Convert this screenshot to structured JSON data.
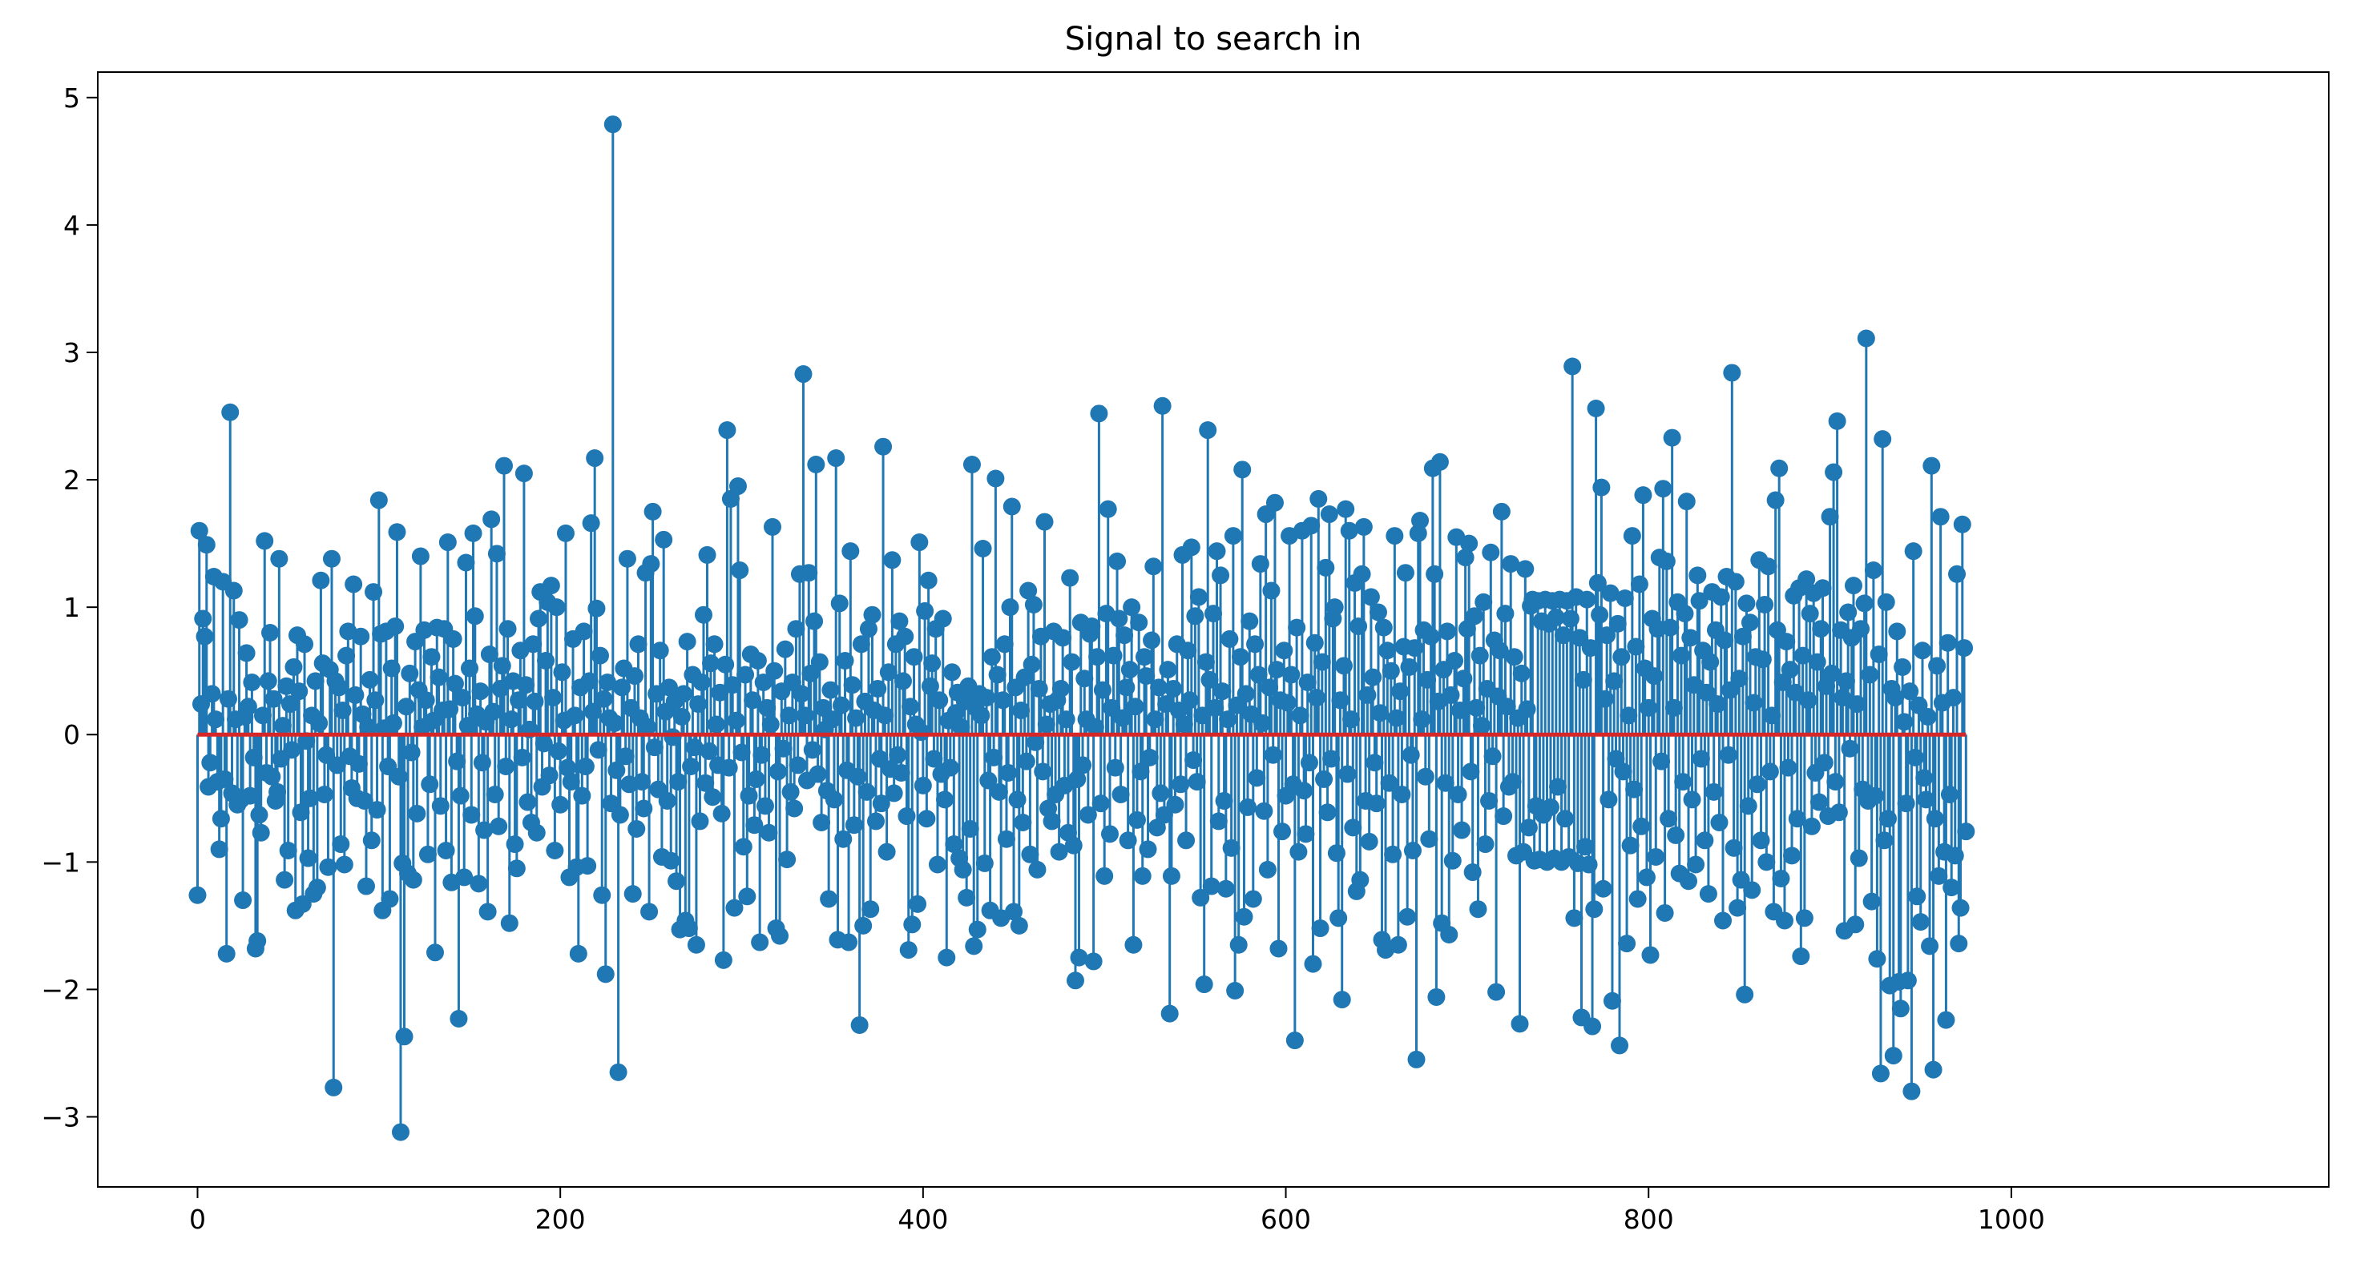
{
  "chart_data": {
    "type": "stem",
    "title": "Signal to search in",
    "xlabel": "",
    "ylabel": "",
    "xlim": [
      -55,
      1175
    ],
    "ylim": [
      -3.55,
      5.2
    ],
    "xticks": [
      0,
      200,
      400,
      600,
      800,
      1000
    ],
    "yticks": [
      -3,
      -2,
      -1,
      0,
      1,
      2,
      3,
      4,
      5
    ],
    "grid": false,
    "legend": "none",
    "baseline": 0,
    "n_points": 1120,
    "stem_color": "#1f77b4",
    "baseline_color": "#d62728",
    "x_start": 0,
    "values": [
      -1.26,
      1.6,
      0.24,
      0.91,
      0.77,
      1.49,
      -0.41,
      -0.22,
      0.32,
      1.24,
      0.12,
      -0.37,
      -0.9,
      -0.66,
      1.2,
      -0.35,
      -1.72,
      0.28,
      2.53,
      -0.46,
      1.13,
      0.12,
      -0.55,
      0.9,
      -0.51,
      -1.3,
      0.14,
      0.64,
      0.22,
      -0.48,
      0.41,
      -0.18,
      -1.68,
      -1.62,
      -0.63,
      -0.77,
      0.15,
      1.52,
      -0.3,
      0.42,
      0.8,
      -0.33,
      0.28,
      -0.52,
      -0.45,
      1.38,
      -0.19,
      0.07,
      -1.14,
      0.38,
      -0.91,
      0.24,
      -0.12,
      0.53,
      -1.38,
      0.78,
      0.34,
      -0.61,
      -1.33,
      0.71,
      -0.05,
      -0.97,
      -0.5,
      0.15,
      -1.25,
      0.42,
      -1.2,
      0.09,
      1.21,
      0.56,
      -0.47,
      -0.16,
      -1.04,
      0.51,
      1.38,
      -2.77,
      0.42,
      -0.24,
      0.37,
      -0.86,
      0.19,
      -1.02,
      0.62,
      0.81,
      -0.17,
      -0.42,
      1.18,
      0.31,
      -0.5,
      -0.23,
      0.77,
      0.16,
      -0.52,
      -1.19,
      0.06,
      0.43,
      -0.83,
      1.12,
      0.27,
      -0.59,
      1.84,
      0.79,
      -1.38,
      0.05,
      0.81,
      -0.25,
      -1.29,
      0.52,
      0.09,
      0.85,
      1.59,
      -0.33,
      -3.12,
      -1.01,
      -2.37,
      0.22,
      -1.09,
      0.48,
      -0.14,
      -1.14,
      0.73,
      -0.62,
      0.35,
      1.4,
      0.06,
      0.82,
      0.27,
      -0.94,
      -0.39,
      0.61,
      0.11,
      -1.71,
      0.84,
      0.45,
      -0.56,
      0.19,
      0.83,
      -0.91,
      1.51,
      0.2,
      -1.16,
      0.75,
      0.4,
      -0.21,
      -2.23,
      -0.48,
      0.29,
      -1.12,
      1.35,
      0.07,
      0.52,
      -0.63,
      1.58,
      0.93,
      0.16,
      -1.17,
      0.34,
      -0.22,
      -0.75,
      0.1,
      -1.39,
      0.63,
      1.69,
      0.18,
      -0.47,
      1.42,
      -0.72,
      0.36,
      0.54,
      2.11,
      -0.25,
      0.83,
      -1.48,
      0.12,
      0.42,
      -0.86,
      -1.05,
      0.27,
      0.66,
      -0.18,
      2.05,
      0.39,
      -0.53,
      0.04,
      -0.69,
      0.71,
      0.26,
      -0.77,
      0.91,
      1.12,
      -0.41,
      -0.07,
      0.58,
      1.04,
      -0.32,
      1.17,
      0.29,
      -0.91,
      1.0,
      -0.13,
      -0.55,
      0.49,
      0.11,
      1.58,
      -0.26,
      -1.12,
      -0.37,
      0.75,
      0.15,
      -1.04,
      -1.72,
      0.37,
      -0.48,
      0.81,
      -0.25,
      -1.03,
      0.42,
      1.66,
      0.18,
      2.17,
      0.99,
      -0.12,
      0.62,
      -1.26,
      0.28,
      -1.88,
      0.41,
      0.13,
      -0.54,
      4.79,
      0.09,
      -0.28,
      -2.65,
      -0.63,
      0.37,
      0.52,
      -0.17,
      1.38,
      -0.39,
      0.21,
      -1.25,
      0.46,
      -0.74,
      0.71,
      0.13,
      -0.37,
      -0.58,
      1.27,
      0.06,
      -1.39,
      1.34,
      1.75,
      -0.1,
      0.32,
      -0.43,
      0.66,
      -0.96,
      1.53,
      0.18,
      -0.52,
      0.37,
      -0.99,
      -0.02,
      0.26,
      -1.15,
      -0.37,
      -1.53,
      0.14,
      0.32,
      -1.46,
      0.73,
      -1.52,
      -0.25,
      0.47,
      -0.1,
      -1.65,
      0.24,
      -0.68,
      0.41,
      0.94,
      -0.38,
      1.41,
      -0.13,
      0.56,
      -0.49,
      0.71,
      0.08,
      -0.24,
      0.33,
      -0.62,
      -1.77,
      0.55,
      2.39,
      -0.26,
      1.85,
      0.39,
      -1.36,
      0.11,
      1.95,
      1.29,
      -0.14,
      -0.88,
      0.47,
      -1.27,
      -0.48,
      0.63,
      0.27,
      -0.71,
      -0.35,
      0.58,
      -1.63,
      -0.16,
      0.41,
      -0.56,
      0.21,
      -0.77,
      0.08,
      1.63,
      0.5,
      -1.52,
      -0.29,
      -1.58,
      0.34,
      -0.11,
      0.67,
      -0.98,
      0.15,
      -0.45,
      0.41,
      -0.58,
      0.83,
      -0.24,
      1.26,
      0.32,
      2.83,
      0.15,
      -0.36,
      1.27,
      0.48,
      -0.12,
      0.89,
      2.12,
      -0.31,
      0.57,
      -0.69,
      0.21,
      0.04,
      -0.44,
      -1.29,
      0.35,
      0.12,
      -0.51,
      2.17,
      -1.61,
      1.03,
      0.23,
      -0.82,
      0.58,
      -0.28,
      -1.63,
      1.44,
      0.39,
      -0.71,
      0.13,
      -0.33,
      -2.28,
      0.71,
      -1.5,
      0.26,
      -0.45,
      0.83,
      -1.37,
      0.94,
      0.19,
      -0.68,
      0.36,
      -0.19,
      -0.54,
      2.26,
      0.15,
      -0.92,
      0.49,
      -0.27,
      1.37,
      -0.46,
      0.71,
      -0.16,
      0.89,
      -0.3,
      0.42,
      0.77,
      -0.64,
      -1.69,
      0.22,
      -1.49,
      0.61,
      0.08,
      -1.33,
      1.51,
      0.02,
      -0.4,
      0.97,
      -0.66,
      1.21,
      0.38,
      0.56,
      -0.19,
      0.83,
      -1.02,
      0.27,
      -0.31,
      0.91,
      -0.51,
      -1.75,
      0.11,
      -0.26,
      0.49,
      -0.86,
      0.17,
      0.33,
      -0.97,
      0.06,
      -1.06,
      0.26,
      -1.28,
      0.38,
      -0.74,
      2.12,
      -1.66,
      0.21,
      -1.53,
      0.32,
      0.15,
      1.46,
      -1.01,
      0.29,
      -0.36,
      -1.38,
      0.61,
      -0.18,
      2.01,
      0.47,
      -0.45,
      -1.44,
      0.27,
      0.71,
      -0.82,
      -0.3,
      1.0,
      1.79,
      -1.39,
      0.37,
      -0.51,
      -1.5,
      0.19,
      -0.69,
      0.45,
      -0.21,
      1.13,
      -0.94,
      0.55,
      1.02,
      -0.06,
      -1.06,
      0.36,
      0.77,
      -0.29,
      1.67,
      0.08,
      -0.58,
      0.24,
      -0.68,
      0.81,
      -0.47,
      0.27,
      -0.92,
      0.36,
      0.76,
      -0.4,
      0.12,
      -0.77,
      1.23,
      0.57,
      -0.87,
      -1.93,
      -0.35,
      -1.75,
      0.88,
      -0.24,
      0.44,
      0.12,
      -0.63,
      0.79,
      0.85,
      -1.78,
      0.06,
      0.61,
      2.52,
      -0.54,
      0.35,
      -1.11,
      0.95,
      1.77,
      -0.78,
      0.21,
      0.62,
      -0.26,
      1.36,
      0.91,
      -0.47,
      0.13,
      0.78,
      0.37,
      -0.83,
      0.51,
      1.0,
      -1.65,
      0.22,
      -0.67,
      0.88,
      -0.29,
      -1.11,
      0.61,
      0.46,
      -0.9,
      -0.18,
      0.74,
      1.32,
      0.12,
      -0.73,
      0.37,
      -0.46,
      2.58,
      -0.63,
      0.24,
      0.51,
      -2.19,
      -1.11,
      0.36,
      -0.55,
      0.71,
      0.19,
      -0.39,
      1.41,
      0.08,
      -0.83,
      0.66,
      0.27,
      1.47,
      -0.2,
      0.93,
      -0.37,
      1.08,
      -1.28,
      0.15,
      -1.96,
      0.57,
      2.39,
      0.43,
      -1.19,
      0.95,
      0.21,
      1.44,
      -0.68,
      1.25,
      0.34,
      -0.52,
      -1.21,
      0.12,
      0.75,
      -0.89,
      1.56,
      -2.01,
      0.23,
      -1.65,
      0.61,
      2.08,
      -1.43,
      0.32,
      -0.57,
      0.89,
      0.16,
      -1.29,
      0.71,
      -0.34,
      0.47,
      1.34,
      0.09,
      -0.6,
      1.73,
      -1.06,
      0.37,
      1.13,
      -0.16,
      1.82,
      0.51,
      -1.68,
      0.27,
      -0.76,
      0.66,
      -0.48,
      0.25,
      1.56,
      0.47,
      -0.39,
      -2.4,
      0.84,
      -0.92,
      0.15,
      1.6,
      -0.44,
      -0.78,
      0.41,
      -0.22,
      1.64,
      -1.8,
      0.72,
      0.29,
      1.85,
      -1.52,
      0.57,
      -0.35,
      1.31,
      -0.61,
      1.73,
      -0.19,
      0.91,
      1.0,
      -0.93,
      -1.44,
      0.27,
      -2.08,
      0.54,
      1.77,
      -0.31,
      1.6,
      0.12,
      -0.73,
      1.19,
      -1.23,
      0.85,
      -1.14,
      1.26,
      1.63,
      -0.52,
      0.31,
      -0.84,
      1.08,
      0.45,
      -0.22,
      -0.54,
      0.96,
      0.17,
      -1.61,
      0.84,
      -1.69,
      0.66,
      -0.38,
      0.5,
      -0.94,
      1.56,
      0.13,
      -1.65,
      0.34,
      -0.47,
      0.69,
      1.27,
      -1.43,
      0.53,
      -0.16,
      -0.91,
      0.68,
      -2.55,
      1.58,
      1.68,
      0.12,
      0.82,
      -0.33,
      0.43,
      -0.82,
      0.77,
      2.09,
      1.26,
      -2.06,
      0.26,
      2.14,
      -1.48,
      0.51,
      -0.38,
      0.81,
      -1.57,
      0.31,
      -0.99,
      0.58,
      1.55,
      -0.47,
      0.19,
      -0.75,
      0.44,
      1.39,
      0.83,
      1.5,
      -0.29,
      -1.08,
      0.93,
      0.21,
      -1.37,
      0.62,
      0.07,
      1.04,
      -0.86,
      0.36,
      -0.52,
      1.43,
      -0.17,
      0.74,
      -2.02,
      0.3,
      0.66,
      1.75,
      -0.64,
      0.95,
      0.22,
      -0.41,
      1.34,
      -0.37,
      0.61,
      -0.95,
      0.13,
      -2.27,
      0.48,
      -0.92,
      1.3,
      0.2,
      -0.73,
      1.01,
      1.06,
      -0.99,
      -0.56,
      1.05,
      -0.98,
      0.89,
      -0.63,
      1.06,
      -1.0,
      0.87,
      -0.57,
      1.05,
      -0.97,
      0.92,
      -0.41,
      1.06,
      -1.0,
      0.78,
      -0.66,
      1.05,
      -0.96,
      0.91,
      2.89,
      -1.44,
      1.08,
      -1.01,
      0.76,
      -2.22,
      0.43,
      -0.88,
      1.06,
      -1.02,
      0.68,
      -2.29,
      -1.37,
      2.56,
      1.19,
      0.94,
      1.94,
      -1.21,
      0.28,
      0.78,
      -0.51,
      1.11,
      -2.09,
      0.42,
      -0.19,
      0.87,
      -2.44,
      0.61,
      -0.29,
      1.07,
      -1.64,
      0.15,
      -0.87,
      1.56,
      -0.43,
      0.69,
      -1.29,
      1.18,
      -0.72,
      1.88,
      0.52,
      -1.12,
      0.21,
      -1.73,
      0.91,
      0.46,
      -0.96,
      0.83,
      1.39,
      -0.21,
      1.93,
      -1.4,
      1.36,
      -0.66,
      0.84,
      2.33,
      0.21,
      -0.79,
      1.04,
      -1.09,
      0.62,
      -0.37,
      0.95,
      1.83,
      -1.15,
      0.76,
      -0.51,
      0.39,
      -1.02,
      1.25,
      1.05,
      -0.19,
      0.66,
      -0.83,
      0.33,
      -1.25,
      0.57,
      1.12,
      -0.45,
      0.82,
      0.24,
      -0.69,
      1.08,
      -1.46,
      0.74,
      1.24,
      -0.16,
      0.35,
      2.84,
      -0.89,
      1.2,
      -1.36,
      0.44,
      -1.14,
      0.77,
      -2.04,
      1.03,
      -0.56,
      0.88,
      -1.22,
      0.25,
      0.61,
      -0.39,
      1.37,
      -0.83,
      0.59,
      1.02,
      -1.0,
      1.32,
      -0.29,
      0.15,
      -1.39,
      1.84,
      0.82,
      2.09,
      -1.13,
      0.41,
      -1.46,
      0.73,
      -0.26,
      0.51,
      -0.95,
      1.09,
      0.33,
      -0.66,
      1.15,
      -1.74,
      0.62,
      -1.44,
      1.22,
      0.27,
      0.95,
      -0.72,
      1.11,
      -0.3,
      0.57,
      -0.53,
      0.83,
      1.15,
      -0.22,
      0.38,
      -0.64,
      1.71,
      0.48,
      2.06,
      -0.37,
      2.46,
      -0.61,
      0.82,
      0.29,
      -1.54,
      0.42,
      0.96,
      -0.11,
      0.76,
      1.17,
      -1.49,
      0.24,
      -0.97,
      0.83,
      -0.43,
      1.03,
      3.11,
      -0.52,
      0.47,
      -1.31,
      1.29,
      -0.48,
      -1.76,
      0.63,
      -2.66,
      2.32,
      -0.83,
      1.04,
      -0.66,
      -1.97,
      0.36,
      -2.52,
      0.29,
      0.81,
      -1.94,
      -2.15,
      0.53,
      0.1,
      -0.54,
      -1.93,
      0.34,
      -2.8,
      1.44,
      -0.18,
      -1.27,
      0.23,
      -1.47,
      0.66,
      -0.34,
      -0.51,
      0.14,
      -1.66,
      2.11,
      -2.63,
      -0.66,
      0.54,
      -1.11,
      1.71,
      0.25,
      -0.92,
      -2.24,
      0.72,
      -0.47,
      -1.2,
      0.29,
      -0.95,
      1.26,
      -1.64,
      -1.36,
      1.65,
      0.68,
      -0.76
    ]
  }
}
